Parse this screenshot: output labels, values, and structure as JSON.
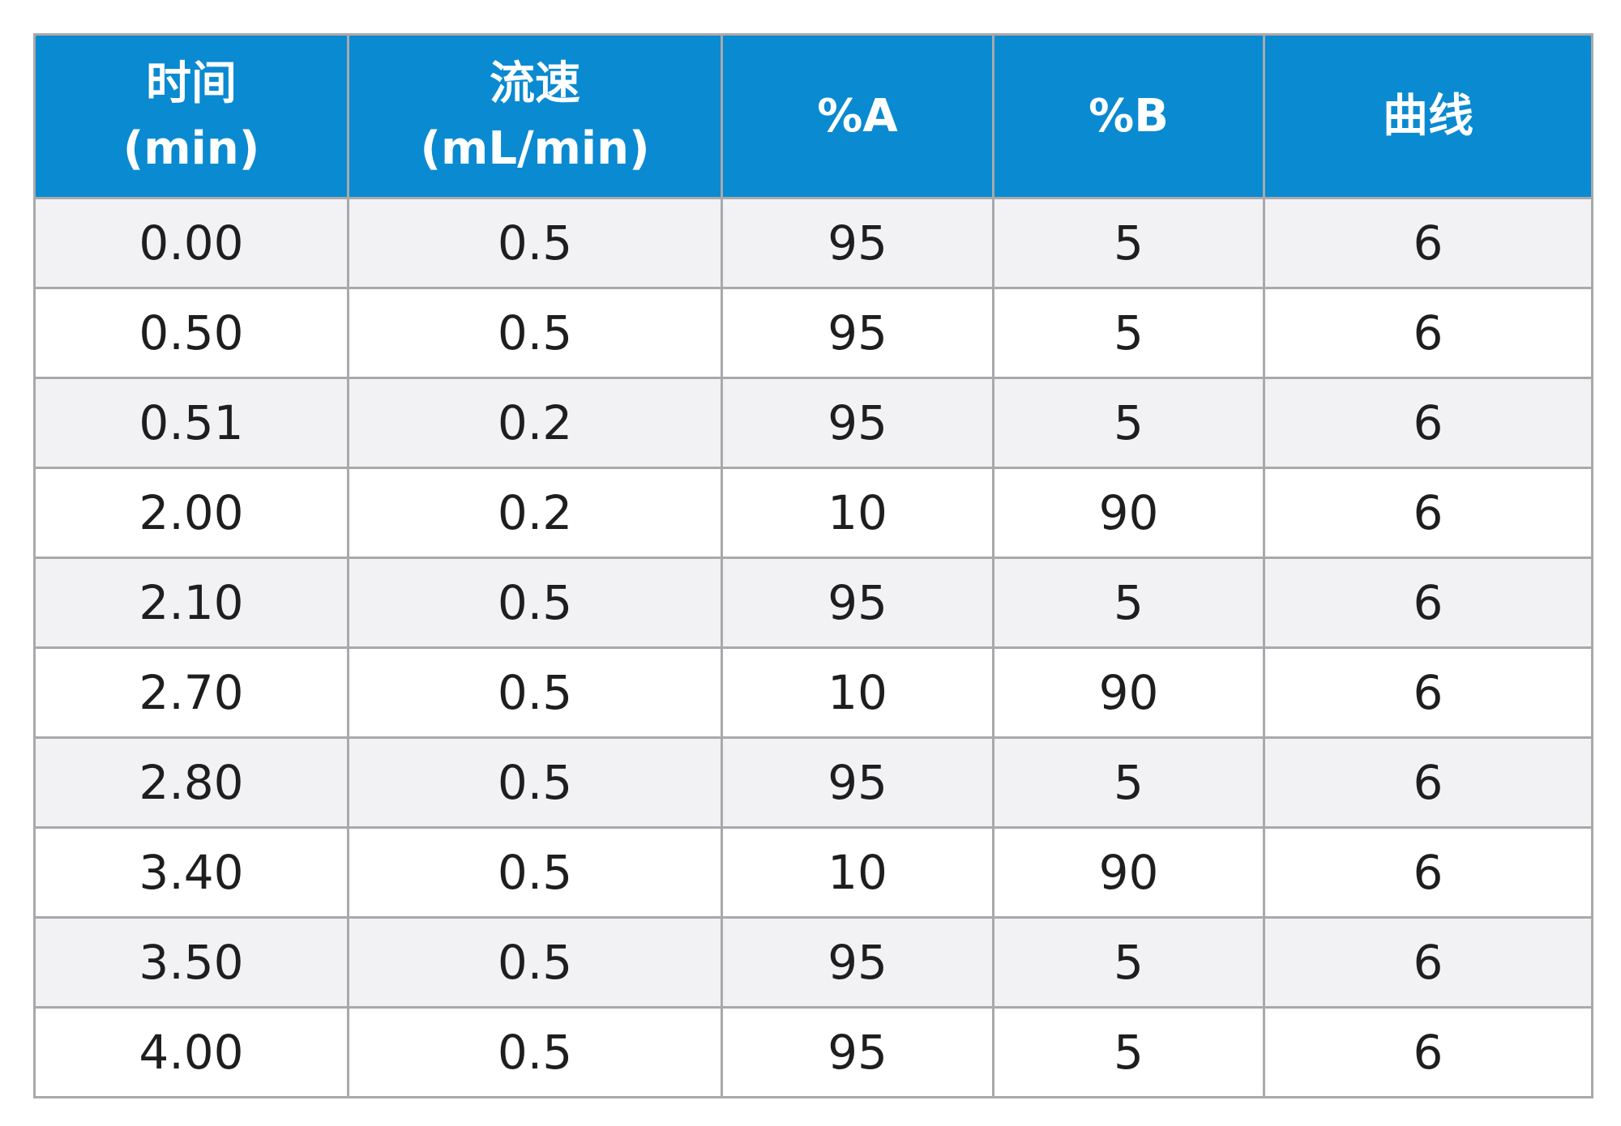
{
  "table": {
    "headers": [
      {
        "line1": "时间",
        "line2": "(min)"
      },
      {
        "line1": "流速",
        "line2": "(mL/min)"
      },
      {
        "line1": "%A",
        "line2": ""
      },
      {
        "line1": "%B",
        "line2": ""
      },
      {
        "line1": "曲线",
        "line2": ""
      }
    ],
    "rows": [
      [
        "0.00",
        "0.5",
        "95",
        "5",
        "6"
      ],
      [
        "0.50",
        "0.5",
        "95",
        "5",
        "6"
      ],
      [
        "0.51",
        "0.2",
        "95",
        "5",
        "6"
      ],
      [
        "2.00",
        "0.2",
        "10",
        "90",
        "6"
      ],
      [
        "2.10",
        "0.5",
        "95",
        "5",
        "6"
      ],
      [
        "2.70",
        "0.5",
        "10",
        "90",
        "6"
      ],
      [
        "2.80",
        "0.5",
        "95",
        "5",
        "6"
      ],
      [
        "3.40",
        "0.5",
        "10",
        "90",
        "6"
      ],
      [
        "3.50",
        "0.5",
        "95",
        "5",
        "6"
      ],
      [
        "4.00",
        "0.5",
        "95",
        "5",
        "6"
      ]
    ]
  },
  "colors": {
    "header_bg": "#0a8ad1",
    "header_text": "#ffffff",
    "row_shade": "#f2f2f4",
    "border": "#a9a9ab"
  }
}
